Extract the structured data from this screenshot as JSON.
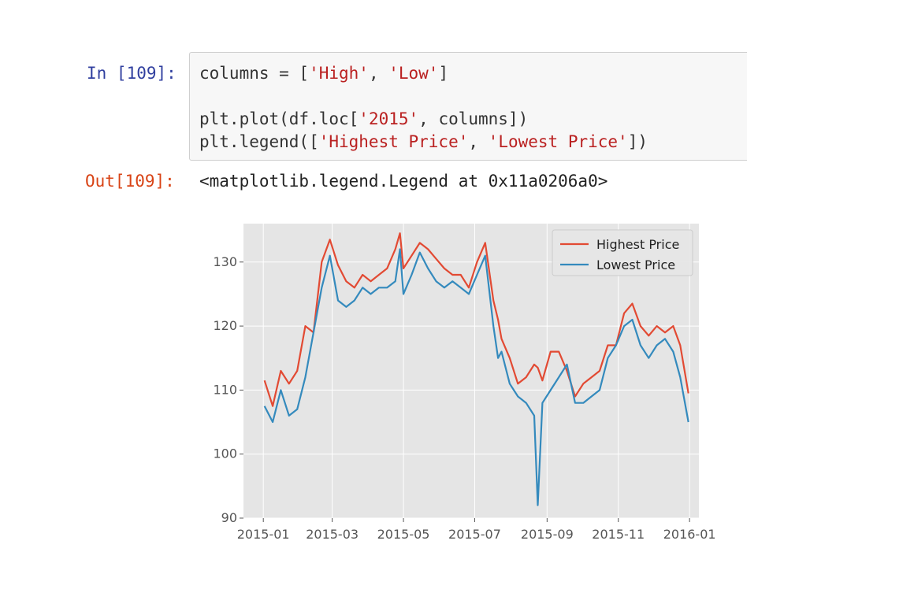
{
  "cell": {
    "in_prompt": "In [109]:",
    "code": {
      "line1_pre": "columns = [",
      "line1_s1": "'High'",
      "line1_mid": ", ",
      "line1_s2": "'Low'",
      "line1_post": "]",
      "line2_pre": "plt.plot(df.loc[",
      "line2_s1": "'2015'",
      "line2_post": ", columns])",
      "line3_pre": "plt.legend([",
      "line3_s1": "'Highest Price'",
      "line3_mid": ", ",
      "line3_s2": "'Lowest Price'",
      "line3_post": "])"
    },
    "out_prompt": "Out[109]:",
    "out_text": "<matplotlib.legend.Legend at 0x11a0206a0>"
  },
  "colors": {
    "high": "#e24a33",
    "low": "#348abd",
    "plot_bg": "#e5e5e5",
    "grid": "#ffffff"
  },
  "chart_data": {
    "type": "line",
    "title": "",
    "xlabel": "",
    "ylabel": "",
    "xlim": [
      "2014-12-15",
      "2016-01-09"
    ],
    "ylim": [
      90,
      136
    ],
    "x_ticks": [
      "2015-01",
      "2015-03",
      "2015-05",
      "2015-07",
      "2015-09",
      "2015-11",
      "2016-01"
    ],
    "y_ticks": [
      90,
      100,
      110,
      120,
      130
    ],
    "grid": true,
    "legend": "top-right",
    "x": [
      "2015-01-02",
      "2015-01-09",
      "2015-01-16",
      "2015-01-23",
      "2015-01-30",
      "2015-02-06",
      "2015-02-13",
      "2015-02-20",
      "2015-02-27",
      "2015-03-06",
      "2015-03-13",
      "2015-03-20",
      "2015-03-27",
      "2015-04-03",
      "2015-04-10",
      "2015-04-17",
      "2015-04-24",
      "2015-04-28",
      "2015-05-01",
      "2015-05-08",
      "2015-05-15",
      "2015-05-22",
      "2015-05-29",
      "2015-06-05",
      "2015-06-12",
      "2015-06-19",
      "2015-06-26",
      "2015-07-03",
      "2015-07-10",
      "2015-07-17",
      "2015-07-21",
      "2015-07-24",
      "2015-07-31",
      "2015-08-07",
      "2015-08-14",
      "2015-08-21",
      "2015-08-24",
      "2015-08-28",
      "2015-09-04",
      "2015-09-11",
      "2015-09-18",
      "2015-09-25",
      "2015-10-02",
      "2015-10-09",
      "2015-10-16",
      "2015-10-23",
      "2015-10-30",
      "2015-11-06",
      "2015-11-13",
      "2015-11-20",
      "2015-11-27",
      "2015-12-04",
      "2015-12-11",
      "2015-12-18",
      "2015-12-24",
      "2015-12-31"
    ],
    "series": [
      {
        "name": "Highest Price",
        "values": [
          111.5,
          107.5,
          113,
          111,
          113,
          120,
          119,
          130,
          133.5,
          129.5,
          127,
          126,
          128,
          127,
          128,
          129,
          132,
          134.5,
          129,
          131,
          133,
          132,
          130.5,
          129,
          128,
          128,
          126,
          130,
          133,
          124,
          121,
          118,
          115,
          111,
          112,
          114,
          113.5,
          111.5,
          116,
          116,
          113,
          109,
          111,
          112,
          113,
          117,
          117,
          122,
          123.5,
          120,
          118.5,
          120,
          119,
          120,
          117,
          109.5
        ]
      },
      {
        "name": "Lowest Price",
        "values": [
          107.5,
          105,
          110,
          106,
          107,
          112,
          119,
          126,
          131,
          124,
          123,
          124,
          126,
          125,
          126,
          126,
          127,
          132,
          125,
          128,
          131.5,
          129,
          127,
          126,
          127,
          126,
          125,
          128,
          131,
          120,
          115,
          116,
          111,
          109,
          108,
          106,
          92,
          108,
          110,
          112,
          114,
          108,
          108,
          109,
          110,
          115,
          117,
          120,
          121,
          117,
          115,
          117,
          118,
          116,
          112,
          105
        ]
      }
    ]
  }
}
